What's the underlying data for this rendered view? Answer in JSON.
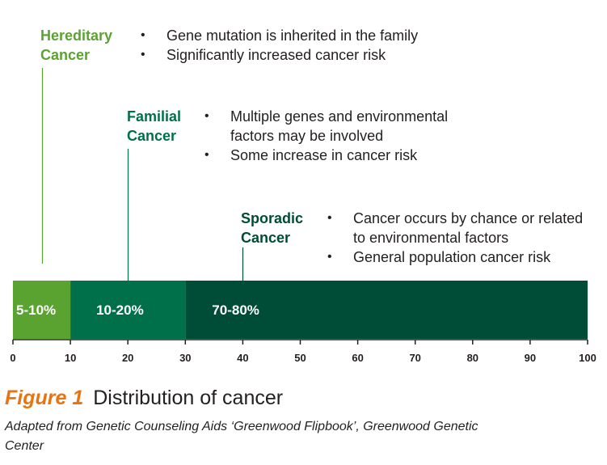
{
  "chart_data": {
    "type": "bar",
    "orientation": "horizontal-stacked",
    "xlim": [
      0,
      100
    ],
    "ticks": [
      "0",
      "10",
      "20",
      "30",
      "40",
      "50",
      "60",
      "70",
      "80",
      "90",
      "100"
    ],
    "segments": [
      {
        "label": "5-10%",
        "start": 0,
        "end": 10,
        "color": "#5aa331"
      },
      {
        "label": "10-20%",
        "start": 10,
        "end": 30,
        "color": "#00704a"
      },
      {
        "label": "70-80%",
        "start": 30,
        "end": 100,
        "color": "#004d37"
      }
    ],
    "annotations": [
      {
        "title": [
          "Hereditary",
          "Cancer"
        ],
        "color": "#5aa331",
        "pointer_x": 5,
        "bullets": [
          "Gene mutation is inherited in the family",
          "Significantly increased cancer risk"
        ]
      },
      {
        "title": [
          "Familial",
          "Cancer"
        ],
        "color": "#00704a",
        "pointer_x": 20,
        "bullets": [
          "Multiple genes and environmental factors may be involved",
          "Some increase in cancer risk"
        ]
      },
      {
        "title": [
          "Sporadic",
          "Cancer"
        ],
        "color": "#004d37",
        "pointer_x": 40,
        "bullets": [
          "Cancer occurs by chance or related to environmental factors",
          "General population cancer risk"
        ]
      }
    ]
  },
  "figure": {
    "number": "Figure 1",
    "title": "Distribution of cancer",
    "caption": "Adapted from Genetic Counseling Aids ‘Greenwood Flipbook’, Greenwood Genetic Center"
  }
}
